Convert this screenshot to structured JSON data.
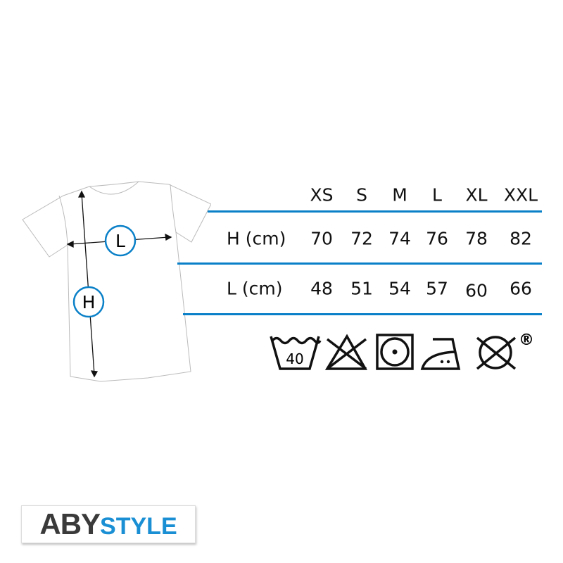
{
  "diagram": {
    "length_marker": "L",
    "height_marker": "H"
  },
  "table": {
    "sizes": [
      "XS",
      "S",
      "M",
      "L",
      "XL",
      "XXL"
    ],
    "rows": [
      {
        "label": "H (cm)",
        "values": [
          "70",
          "72",
          "74",
          "76",
          "78",
          "82"
        ]
      },
      {
        "label": "L (cm)",
        "values": [
          "48",
          "51",
          "54",
          "57",
          "60",
          "66"
        ]
      }
    ]
  },
  "care": {
    "wash_temp": "40",
    "icons": [
      "wash-40-icon",
      "no-bleach-icon",
      "tumble-dry-icon",
      "iron-medium-icon",
      "no-dry-clean-icon"
    ],
    "registered": "®"
  },
  "logo": {
    "part1": "ABY",
    "part2": "STYLE"
  },
  "colors": {
    "accent": "#0a80c8",
    "logo_dark": "#3a3a3a",
    "logo_blue": "#1a8fd4"
  }
}
